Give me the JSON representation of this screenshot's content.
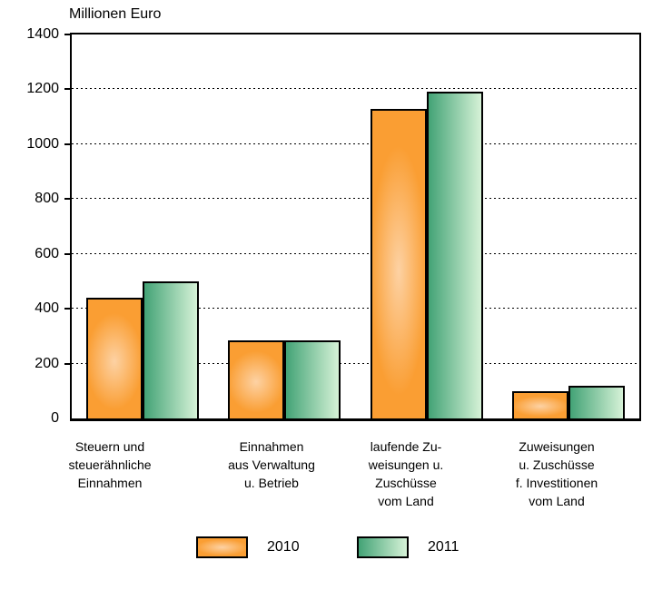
{
  "chart_data": {
    "type": "bar",
    "title": "Millionen Euro",
    "categories": [
      "Steuern und steuerähnliche Einnahmen",
      "Einnahmen aus Verwaltung u. Betrieb",
      "laufende Zuweisungen u. Zuschüsse vom Land",
      "Zuweisungen u. Zuschüsse f. Investitionen vom Land"
    ],
    "category_lines": [
      [
        "Steuern und",
        "steuerähnliche",
        "Einnahmen"
      ],
      [
        "Einnahmen",
        "aus Verwaltung",
        "u. Betrieb"
      ],
      [
        "laufende Zu-",
        "weisungen u.",
        "Zuschüsse",
        "vom Land"
      ],
      [
        "Zuweisungen",
        "u. Zuschüsse",
        "f. Investitionen",
        "vom Land"
      ]
    ],
    "series": [
      {
        "name": "2010",
        "values": [
          440,
          285,
          1130,
          100
        ]
      },
      {
        "name": "2011",
        "values": [
          500,
          285,
          1190,
          120
        ]
      }
    ],
    "ylabel": "Millionen Euro",
    "ylim": [
      0,
      1400
    ],
    "ytick_step": 200,
    "yticks": [
      0,
      200,
      400,
      600,
      800,
      1000,
      1200,
      1400
    ],
    "grid": "horizontal-dashed",
    "legend_position": "bottom",
    "legend_labels": [
      "2010",
      "2011"
    ],
    "colors": {
      "series_2010_main": "#FA9E33",
      "series_2010_light": "#FDD2A4",
      "series_2011_dark": "#43A376",
      "series_2011_light": "#D6F2D7",
      "axis": "#000000",
      "background": "#FFFFFF"
    }
  }
}
